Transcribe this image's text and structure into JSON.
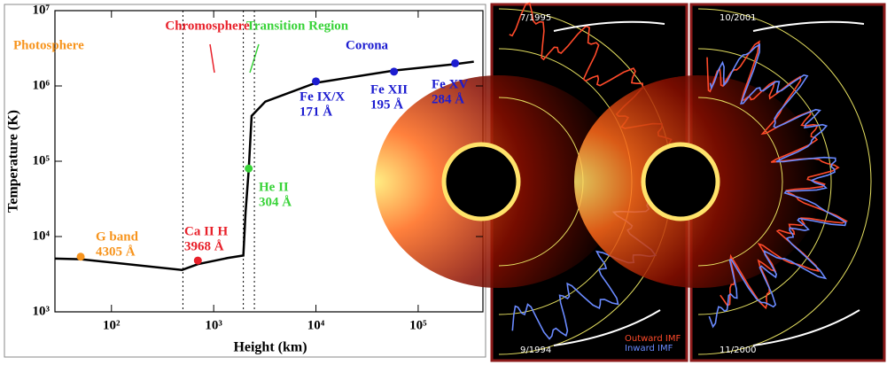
{
  "chart_data": {
    "type": "line",
    "xscale": "log",
    "yscale": "log",
    "x_label": "Height (km)",
    "y_label": "Temperature (K)",
    "xlim": [
      28,
      430000
    ],
    "ylim": [
      1000,
      10000000
    ],
    "xticks": [
      {
        "value": 100,
        "label": "10²"
      },
      {
        "value": 1000,
        "label": "10³"
      },
      {
        "value": 10000,
        "label": "10⁴"
      },
      {
        "value": 100000,
        "label": "10⁵"
      }
    ],
    "yticks": [
      {
        "value": 1000,
        "label": "10³"
      },
      {
        "value": 10000,
        "label": "10⁴"
      },
      {
        "value": 100000,
        "label": "10⁵"
      },
      {
        "value": 1000000,
        "label": "10⁶"
      },
      {
        "value": 10000000,
        "label": "10⁷"
      }
    ],
    "series": [
      {
        "name": "Temperature",
        "color": "#000000",
        "x": [
          28,
          50,
          490,
          700,
          1380,
          1950,
          2050,
          2200,
          2350,
          3200,
          10000,
          58000,
          230000,
          350000
        ],
        "values": [
          5100,
          5000,
          3600,
          4300,
          5200,
          5600,
          21000,
          76000,
          400000,
          620000,
          1100000,
          1600000,
          1950000,
          2100000
        ]
      }
    ],
    "boundaries": [
      500,
      1950,
      2500
    ],
    "points": {
      "x": [
        50,
        700,
        2200,
        10000,
        58000,
        230000
      ],
      "values": [
        5400,
        4800,
        80000,
        1150000,
        1550000,
        2000000
      ],
      "colors": [
        "#f7941d",
        "#e8202a",
        "#39d339",
        "#1c1cd0",
        "#1c1cd0",
        "#1c1cd0"
      ],
      "labels": [
        [
          "G band",
          "4305 Å"
        ],
        [
          "Ca II H",
          "3968 Å"
        ],
        [
          "He II",
          "304 Å"
        ],
        [
          "Fe IX/X",
          "171 Å"
        ],
        [
          "Fe XII",
          "195 Å"
        ],
        [
          "Fe XV",
          "284 Å"
        ]
      ]
    },
    "annotations": [
      {
        "text": "Photosphere",
        "color": "#f7941d"
      },
      {
        "text": "Chromosphere",
        "color": "#e8202a"
      },
      {
        "text": "Transition Region",
        "color": "#39d339"
      },
      {
        "text": "Corona",
        "color": "#1c1cd0"
      }
    ]
  },
  "panels": [
    {
      "top_date": "7/1995",
      "bottom_date": "9/1994",
      "legend": [
        {
          "text": "Outward IMF",
          "color": "#ff4a2a"
        },
        {
          "text": "Inward IMF",
          "color": "#6a8aff"
        }
      ]
    },
    {
      "top_date": "10/2001",
      "bottom_date": "11/2000"
    }
  ]
}
